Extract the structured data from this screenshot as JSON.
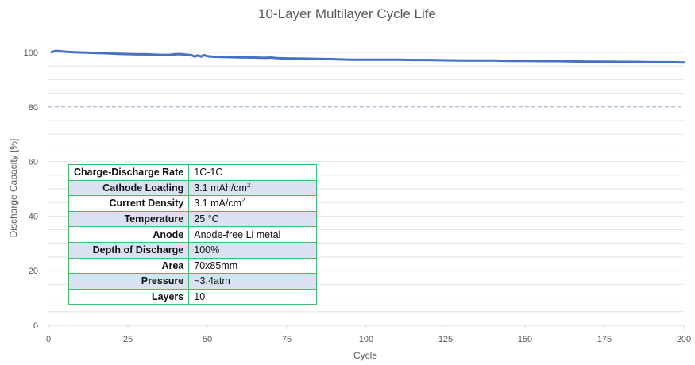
{
  "chart_data": {
    "type": "line",
    "title": "10-Layer Multilayer Cycle Life",
    "xlabel": "Cycle",
    "ylabel": "Discharge Capacity [%]",
    "xlim": [
      0,
      200
    ],
    "ylim": [
      0,
      100
    ],
    "x_ticks": [
      "0",
      "25",
      "50",
      "75",
      "100",
      "125",
      "150",
      "175",
      "200"
    ],
    "y_ticks": [
      "0",
      "20",
      "40",
      "60",
      "80",
      "100"
    ],
    "grid": true,
    "reference_line": {
      "y": 80,
      "style": "dashed",
      "color": "#8fa9c8"
    },
    "series": [
      {
        "color": "#4472c4",
        "x": [
          1,
          2,
          3,
          5,
          8,
          10,
          12,
          15,
          18,
          20,
          22,
          25,
          28,
          30,
          33,
          35,
          38,
          40,
          41,
          42,
          44,
          45,
          46,
          47,
          48,
          49,
          50,
          52,
          55,
          60,
          65,
          68,
          70,
          72,
          75,
          80,
          85,
          90,
          95,
          100,
          105,
          110,
          115,
          120,
          125,
          130,
          135,
          140,
          145,
          150,
          155,
          160,
          165,
          170,
          175,
          180,
          185,
          190,
          195,
          200
        ],
        "y": [
          100.1,
          100.5,
          100.5,
          100.3,
          100.1,
          100.0,
          99.9,
          99.8,
          99.7,
          99.6,
          99.5,
          99.4,
          99.3,
          99.3,
          99.2,
          99.1,
          99.1,
          99.3,
          99.4,
          99.3,
          99.1,
          99.0,
          98.5,
          98.9,
          98.5,
          99.0,
          98.6,
          98.4,
          98.3,
          98.2,
          98.1,
          98.0,
          98.1,
          97.9,
          97.8,
          97.7,
          97.6,
          97.5,
          97.3,
          97.3,
          97.3,
          97.3,
          97.2,
          97.2,
          97.1,
          97.0,
          97.0,
          97.0,
          96.9,
          96.9,
          96.8,
          96.8,
          96.7,
          96.6,
          96.6,
          96.5,
          96.5,
          96.4,
          96.4,
          96.3
        ]
      }
    ]
  },
  "table": {
    "rows": [
      {
        "label": "Charge-Discharge Rate",
        "value": "1C-1C",
        "sup": ""
      },
      {
        "label": "Cathode Loading",
        "value": "3.1 mAh/cm",
        "sup": "2"
      },
      {
        "label": "Current Density",
        "value": "3.1 mA/cm",
        "sup": "2"
      },
      {
        "label": "Temperature",
        "value": "25 °C",
        "sup": ""
      },
      {
        "label": "Anode",
        "value": "Anode-free Li metal",
        "sup": ""
      },
      {
        "label": "Depth of Discharge",
        "value": "100%",
        "sup": ""
      },
      {
        "label": "Area",
        "value": "70x85mm",
        "sup": ""
      },
      {
        "label": "Pressure",
        "value": "~3.4atm",
        "sup": ""
      },
      {
        "label": "Layers",
        "value": "10",
        "sup": ""
      }
    ]
  }
}
